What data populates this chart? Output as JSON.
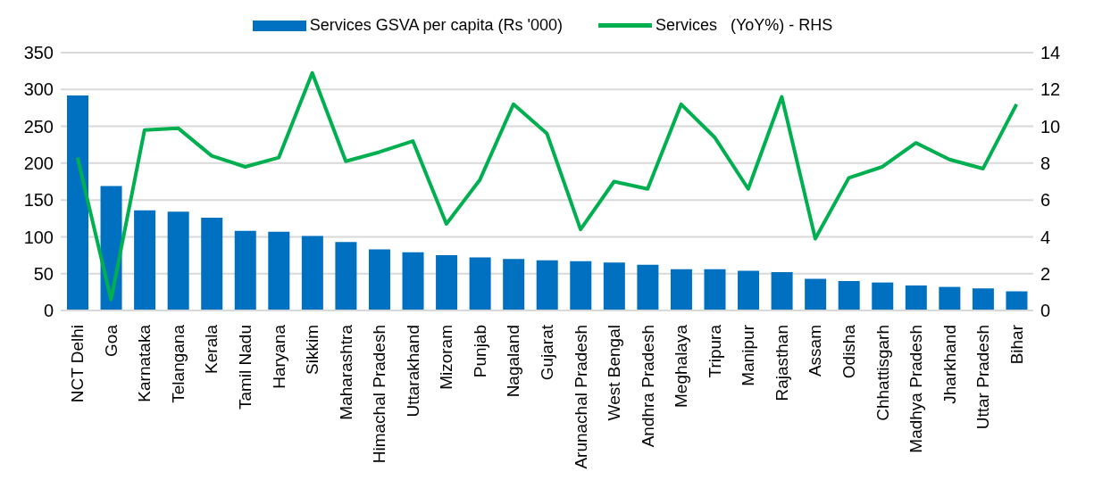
{
  "chart_data": {
    "type": "bar",
    "categories": [
      "NCT Delhi",
      "Goa",
      "Karnataka",
      "Telangana",
      "Kerala",
      "Tamil Nadu",
      "Haryana",
      "Sikkim",
      "Maharashtra",
      "Himachal Pradesh",
      "Uttarakhand",
      "Mizoram",
      "Punjab",
      "Nagaland",
      "Gujarat",
      "Arunachal Pradesh",
      "West Bengal",
      "Andhra Pradesh",
      "Meghalaya",
      "Tripura",
      "Manipur",
      "Rajasthan",
      "Assam",
      "Odisha",
      "Chhattisgarh",
      "Madhya Pradesh",
      "Jharkhand",
      "Uttar Pradesh",
      "Bihar"
    ],
    "series": [
      {
        "name": "Services GSVA per capita (Rs '000)",
        "color": "#0070c0",
        "values": [
          292,
          169,
          136,
          134,
          126,
          108,
          107,
          101,
          93,
          83,
          79,
          75,
          72,
          70,
          68,
          67,
          65,
          62,
          56,
          56,
          54,
          52,
          43,
          40,
          38,
          34,
          32,
          30,
          26
        ]
      },
      {
        "name": "Services   (YoY%) - RHS",
        "type": "line",
        "axis": "y2",
        "color": "#00b050",
        "values": [
          8.3,
          0.6,
          9.8,
          9.9,
          8.4,
          7.8,
          8.3,
          12.9,
          8.1,
          8.6,
          9.2,
          4.7,
          7.1,
          11.2,
          9.6,
          4.4,
          7.0,
          6.6,
          11.2,
          9.4,
          6.6,
          11.6,
          3.9,
          7.2,
          7.8,
          9.1,
          8.2,
          7.7,
          11.2
        ]
      }
    ],
    "ylim": [
      0,
      350
    ],
    "yticks": [
      0,
      50,
      100,
      150,
      200,
      250,
      300,
      350
    ],
    "y2lim": [
      0,
      14
    ],
    "y2ticks": [
      0,
      2,
      4,
      6,
      8,
      10,
      12,
      14
    ],
    "grid": "y",
    "legend": "top",
    "marker": "none",
    "line_style": "solid"
  }
}
